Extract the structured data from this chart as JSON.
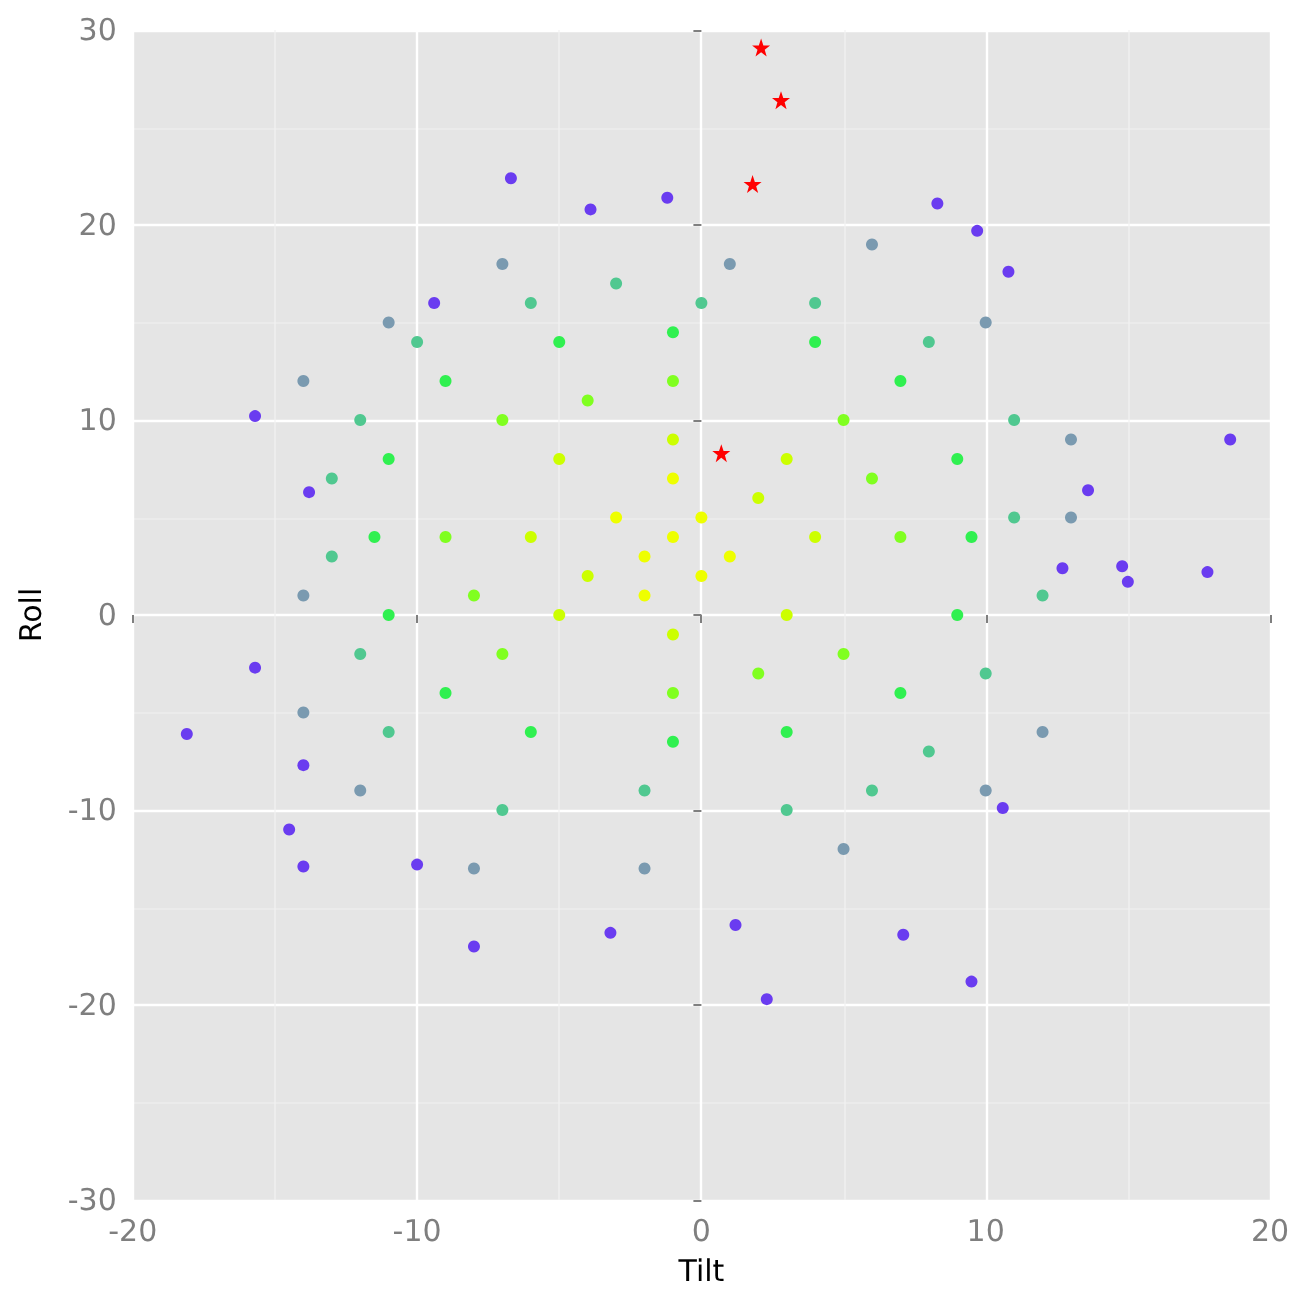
{
  "chart_data": {
    "type": "scatter",
    "xlabel": "Tilt",
    "ylabel": "Roll",
    "xlim": [
      -20,
      20
    ],
    "xticks": [
      -20,
      -10,
      0,
      10,
      20
    ],
    "ylim": [
      -30,
      30
    ],
    "yticks": [
      -30,
      -20,
      -10,
      0,
      10,
      20,
      30
    ],
    "grid": true,
    "marker": "circle",
    "series": [
      {
        "color": "#7a9ab0",
        "x": [
          13,
          -14,
          1,
          -2,
          10,
          -11,
          10,
          -12,
          13,
          -14,
          5,
          -7,
          6,
          -8,
          -14,
          12
        ],
        "values": [
          5,
          1,
          18,
          -13,
          15,
          15,
          -9,
          -9,
          9,
          -5,
          -12,
          18,
          19,
          -13,
          12,
          -6
        ]
      },
      {
        "color": "#6a3cf0",
        "x": [
          -18.1,
          18.6,
          17.8,
          2.3,
          9.5,
          -8,
          -14,
          -14.5,
          -15.7,
          -15.7,
          -6.7,
          -3.9,
          -1.2,
          8.3,
          9.7,
          10.8,
          15,
          14.8,
          -13.8,
          -14,
          -3.2,
          7.1,
          1.2,
          -10,
          10.6,
          12.7,
          13.6,
          -9.4
        ],
        "values": [
          -6.1,
          9,
          2.2,
          -19.7,
          -18.8,
          -17,
          -12.9,
          -11,
          -2.7,
          10.2,
          22.4,
          20.8,
          21.4,
          21.1,
          19.7,
          17.6,
          1.7,
          2.5,
          6.3,
          -7.7,
          -16.3,
          -16.4,
          -15.9,
          -12.8,
          -9.9,
          2.4,
          6.4,
          16
        ]
      },
      {
        "color": "#50c890",
        "x": [
          11,
          -13,
          0,
          -2,
          8,
          -10,
          8,
          -11,
          11,
          -12,
          3,
          -6,
          4,
          -7,
          -12,
          10,
          6,
          -3,
          12,
          -13
        ],
        "values": [
          5,
          3,
          16,
          -9,
          14,
          14,
          -7,
          -6,
          10,
          -2,
          -10,
          16,
          16,
          -10,
          10,
          -3,
          -9,
          17,
          1,
          7
        ]
      },
      {
        "color": "#30f050",
        "x": [
          9.5,
          -11.5,
          -1,
          -1,
          7,
          -9,
          7,
          -9,
          9,
          -11,
          3,
          -5,
          4,
          -6,
          -11,
          9
        ],
        "values": [
          4,
          4,
          14.5,
          -6.5,
          12,
          12,
          -4,
          -4,
          8,
          0,
          -6,
          14,
          14,
          -6,
          8,
          0
        ]
      },
      {
        "color": "#80ff20",
        "x": [
          7,
          -9,
          -1,
          -1,
          5,
          -7,
          5,
          -7,
          6,
          -8,
          2,
          -4
        ],
        "values": [
          4,
          4,
          12,
          -4,
          10,
          10,
          -2,
          -2,
          7,
          1,
          -3,
          11
        ]
      },
      {
        "color": "#ccff00",
        "x": [
          4,
          -6,
          -1,
          -1,
          3,
          -5,
          3,
          -5,
          2,
          -4
        ],
        "values": [
          4,
          4,
          9,
          -1,
          8,
          8,
          0,
          0,
          6,
          2
        ]
      },
      {
        "color": "#eeff00",
        "x": [
          -1,
          0,
          -2,
          1,
          -3,
          0,
          -1,
          -2
        ],
        "values": [
          4,
          5,
          3,
          3,
          5,
          2,
          7,
          1
        ]
      },
      {
        "color": "#ff0000",
        "marker": "star",
        "x": [
          2.1,
          2.8,
          1.8,
          0.7
        ],
        "values": [
          29.1,
          26.4,
          22.1,
          8.3
        ]
      }
    ]
  }
}
